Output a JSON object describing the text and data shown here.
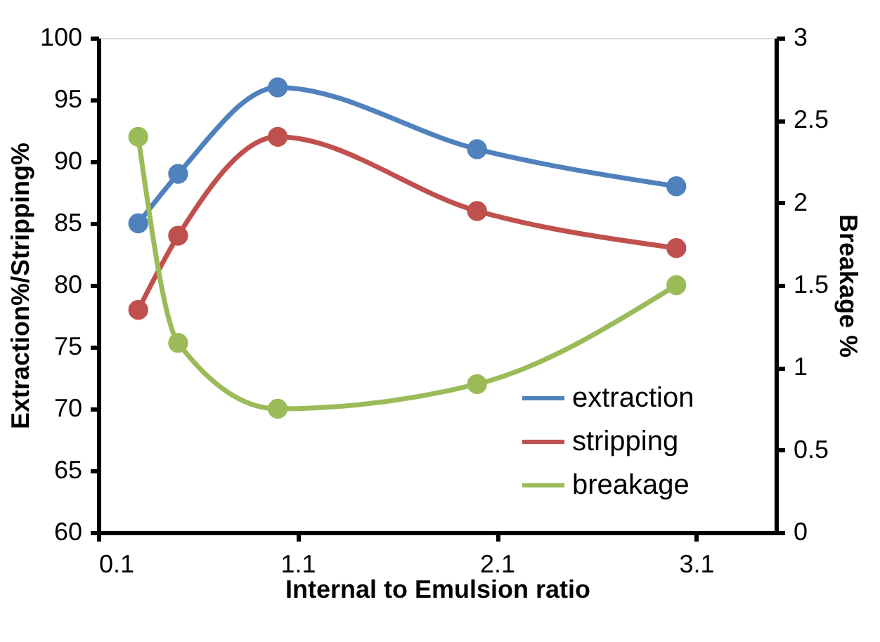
{
  "chart_data": {
    "type": "line",
    "xlabel": "Internal to Emulsion ratio",
    "ylabel": "Extraction%/Stripping%",
    "y2label": "Breakage %",
    "x": [
      0.3,
      0.5,
      1,
      2,
      3
    ],
    "series": [
      {
        "name": "extraction",
        "color": "#4f81bd",
        "values": [
          85,
          89,
          96,
          91,
          88
        ]
      },
      {
        "name": "stripping",
        "color": "#c0504d",
        "values": [
          78,
          84,
          92,
          86,
          83
        ]
      },
      {
        "name": "breakage",
        "color": "#9bbb59",
        "values": [
          2.4,
          1.15,
          0.75,
          0.9,
          1.5
        ],
        "axis": "y2"
      }
    ],
    "xlim": [
      0.1,
      3.5
    ],
    "xticks": [
      0.1,
      1.1,
      2.1,
      3.1
    ],
    "ylim": [
      60,
      100
    ],
    "yticks": [
      60,
      65,
      70,
      75,
      80,
      85,
      90,
      95,
      100
    ],
    "y2lim": [
      0,
      3
    ],
    "y2ticks": [
      0,
      0.5,
      1,
      1.5,
      2,
      2.5,
      3
    ],
    "grid": false,
    "legend": "bottom right",
    "marker": "circle",
    "line_style": "solid"
  }
}
